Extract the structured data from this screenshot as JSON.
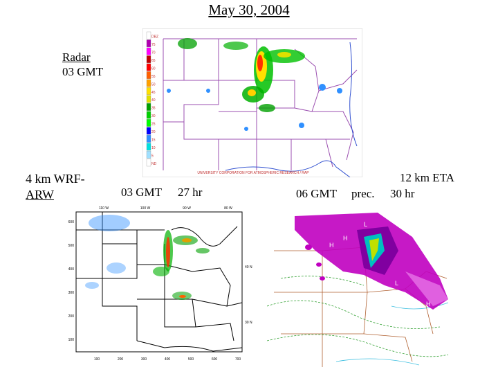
{
  "slide": {
    "title": "May 30, 2004",
    "radar": {
      "line1": "Radar",
      "line2": "03 GMT"
    },
    "wrf": {
      "line1": "4 km WRF-",
      "line2": "ARW",
      "time": "03 GMT",
      "forecast": "27 hr"
    },
    "eta": {
      "label": "12 km ETA",
      "time": "06 GMT",
      "field": "prec.",
      "forecast": "30 hr"
    }
  },
  "radar_map": {
    "legend_values": [
      "DBZ",
      "75",
      "70",
      "65",
      "60",
      "55",
      "50",
      "45",
      "40",
      "35",
      "30",
      "25",
      "20",
      "15",
      "10",
      "5",
      "ND"
    ],
    "legend_colors": [
      "#ffffff",
      "#b000b0",
      "#ff00ff",
      "#c00000",
      "#ff0000",
      "#ff6000",
      "#ffa000",
      "#ffe000",
      "#e0e000",
      "#00a000",
      "#00d000",
      "#00ff00",
      "#0000ff",
      "#3090ff",
      "#00e0e0",
      "#a0e0ff",
      "#ffffff"
    ],
    "footer": "UNIVERSITY CORPORATION FOR ATMOSPHERIC RESEARCH / RAP"
  },
  "wrf_map": {
    "top_ticks": [
      "110 W",
      "100 W",
      "90 W",
      "80 W"
    ],
    "left_ticks": [
      "600",
      "500",
      "400",
      "300",
      "200",
      "100"
    ],
    "right_ticks": [
      "40 N",
      "30 N"
    ],
    "bottom_ticks": [
      "100",
      "200",
      "300",
      "400",
      "500",
      "600",
      "700"
    ]
  },
  "eta_map": {
    "markers": [
      "H",
      "L",
      "H",
      "H",
      "H",
      "L",
      "H"
    ]
  }
}
